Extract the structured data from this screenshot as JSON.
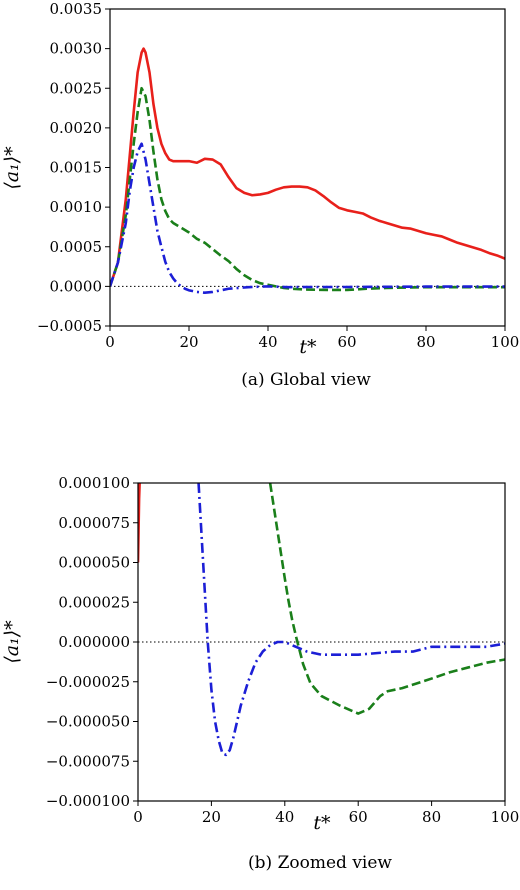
{
  "chart_data": [
    {
      "type": "line",
      "caption": "(a)  Global view",
      "xlabel": "t*",
      "ylabel": "⟨a₁⟩*",
      "xlim": [
        0,
        100
      ],
      "ylim": [
        -0.0005,
        0.0035
      ],
      "xticks": [
        0,
        20,
        40,
        60,
        80,
        100
      ],
      "yticks": [
        -0.0005,
        0.0,
        0.0005,
        0.001,
        0.0015,
        0.002,
        0.0025,
        0.003,
        0.0035
      ],
      "xtick_labels": [
        "0",
        "20",
        "40",
        "60",
        "80",
        "100"
      ],
      "ytick_labels": [
        "−0.0005",
        "0.0000",
        "0.0005",
        "0.0010",
        "0.0015",
        "0.0020",
        "0.0025",
        "0.0030",
        "0.0035"
      ],
      "reference_line": 0,
      "series": [
        {
          "color": "#e8201b",
          "style": "solid",
          "x": [
            0,
            2,
            4,
            6,
            7,
            8,
            8.5,
            9,
            10,
            11,
            12,
            13,
            14,
            15,
            16,
            18,
            20,
            22,
            24,
            26,
            28,
            30,
            32,
            34,
            36,
            38,
            40,
            42,
            44,
            46,
            48,
            50,
            52,
            54,
            56,
            58,
            60,
            62,
            64,
            66,
            68,
            70,
            72,
            74,
            76,
            78,
            80,
            82,
            84,
            86,
            88,
            90,
            92,
            94,
            96,
            98,
            100
          ],
          "y": [
            0.0,
            0.0003,
            0.0011,
            0.0022,
            0.0027,
            0.00295,
            0.003,
            0.00295,
            0.0027,
            0.0023,
            0.002,
            0.0018,
            0.00168,
            0.0016,
            0.00158,
            0.00158,
            0.00158,
            0.00156,
            0.00161,
            0.0016,
            0.00154,
            0.00138,
            0.00124,
            0.00118,
            0.00115,
            0.00116,
            0.00118,
            0.00122,
            0.00125,
            0.00126,
            0.00126,
            0.00125,
            0.00121,
            0.00114,
            0.00106,
            0.00099,
            0.00096,
            0.00094,
            0.00092,
            0.00087,
            0.00083,
            0.0008,
            0.00077,
            0.00074,
            0.00073,
            0.0007,
            0.00067,
            0.00065,
            0.00063,
            0.00059,
            0.00055,
            0.00052,
            0.00049,
            0.00046,
            0.00042,
            0.00039,
            0.00035
          ]
        },
        {
          "color": "#1a7f1a",
          "style": "dashed",
          "x": [
            0,
            2,
            4,
            6,
            7,
            8,
            9,
            10,
            11,
            12,
            13,
            14,
            15,
            16,
            18,
            20,
            22,
            24,
            26,
            28,
            30,
            32,
            34,
            36,
            38,
            40,
            42,
            44,
            46,
            48,
            50,
            55,
            60,
            65,
            70,
            75,
            80,
            85,
            90,
            95,
            100
          ],
          "y": [
            0.0,
            0.0003,
            0.0009,
            0.0018,
            0.0022,
            0.0025,
            0.0024,
            0.0021,
            0.0017,
            0.00135,
            0.0011,
            0.00095,
            0.00085,
            0.0008,
            0.00074,
            0.00068,
            0.0006,
            0.00055,
            0.00047,
            0.00039,
            0.00032,
            0.00022,
            0.00014,
            8e-05,
            4e-05,
            2e-05,
            0.0,
            -2e-05,
            -3e-05,
            -3.5e-05,
            -4e-05,
            -4.5e-05,
            -4.5e-05,
            -3e-05,
            -2e-05,
            -1.5e-05,
            -1e-05,
            -1e-05,
            -1e-05,
            -1e-05,
            -1e-05
          ]
        },
        {
          "color": "#1c1fd6",
          "style": "dashdot",
          "x": [
            0,
            2,
            4,
            5,
            6,
            7,
            8,
            9,
            10,
            11,
            12,
            13,
            14,
            15,
            16,
            17,
            18,
            19,
            20,
            22,
            24,
            26,
            28,
            30,
            35,
            40,
            45,
            50,
            60,
            70,
            80,
            90,
            100
          ],
          "y": [
            0.0,
            0.0003,
            0.0008,
            0.0012,
            0.0015,
            0.0017,
            0.0018,
            0.0016,
            0.0013,
            0.001,
            0.0007,
            0.0005,
            0.00031,
            0.00018,
            0.0001,
            4e-05,
            0.0,
            -3e-05,
            -5e-05,
            -7e-05,
            -8e-05,
            -7e-05,
            -5e-05,
            -3e-05,
            -1e-05,
            0.0,
            -1e-05,
            -8e-06,
            -8e-06,
            -5e-06,
            -3e-06,
            -2e-06,
            -2e-06
          ]
        }
      ]
    },
    {
      "type": "line",
      "caption": "(b)  Zoomed view",
      "xlabel": "t*",
      "ylabel": "⟨a₁⟩*",
      "xlim": [
        0,
        100
      ],
      "ylim": [
        -0.0001,
        0.0001
      ],
      "xticks": [
        0,
        20,
        40,
        60,
        80,
        100
      ],
      "yticks": [
        -0.0001,
        -7.5e-05,
        -5e-05,
        -2.5e-05,
        0.0,
        2.5e-05,
        5e-05,
        7.5e-05,
        0.0001
      ],
      "xtick_labels": [
        "0",
        "20",
        "40",
        "60",
        "80",
        "100"
      ],
      "ytick_labels": [
        "−0.000100",
        "−0.000075",
        "−0.000050",
        "−0.000025",
        "0.000000",
        "0.000025",
        "0.000050",
        "0.000075",
        "0.000100"
      ],
      "reference_line": 0,
      "series": [
        {
          "color": "#e8201b",
          "style": "solid",
          "x": [
            0,
            0.15,
            0.3,
            0.45,
            0.6
          ],
          "y": [
            5e-05,
            7e-05,
            9e-05,
            0.0001,
            0.00011
          ]
        },
        {
          "color": "#1a7f1a",
          "style": "dashed",
          "x": [
            36,
            37,
            38,
            39,
            40,
            41,
            42,
            43,
            44,
            45,
            47,
            50,
            55,
            60,
            63,
            66,
            68,
            72,
            76,
            80,
            85,
            90,
            95,
            100
          ],
          "y": [
            0.0001,
            8.5e-05,
            7e-05,
            5.5e-05,
            4e-05,
            2.6e-05,
            1.4e-05,
            4e-06,
            -5e-06,
            -1.4e-05,
            -2.6e-05,
            -3.4e-05,
            -4e-05,
            -4.5e-05,
            -4.2e-05,
            -3.4e-05,
            -3.1e-05,
            -2.9e-05,
            -2.6e-05,
            -2.3e-05,
            -1.9e-05,
            -1.6e-05,
            -1.3e-05,
            -1.1e-05
          ]
        },
        {
          "color": "#1c1fd6",
          "style": "dashdot",
          "x": [
            16.5,
            17,
            17.5,
            18,
            18.5,
            19,
            19.5,
            20,
            21,
            22,
            23,
            24,
            25,
            26,
            27,
            28,
            30,
            32,
            34,
            36,
            38,
            40,
            42,
            44,
            46,
            48,
            50,
            55,
            60,
            65,
            70,
            75,
            80,
            85,
            90,
            95,
            100
          ],
          "y": [
            0.0001,
            8e-05,
            6e-05,
            4e-05,
            2e-05,
            0.0,
            -1.5e-05,
            -3e-05,
            -5e-05,
            -6.2e-05,
            -7e-05,
            -7.1e-05,
            -6.8e-05,
            -6e-05,
            -5e-05,
            -4e-05,
            -2.5e-05,
            -1.3e-05,
            -6e-06,
            -2e-06,
            0.0,
            0.0,
            -2e-06,
            -4e-06,
            -6e-06,
            -7e-06,
            -8e-06,
            -8e-06,
            -8e-06,
            -7e-06,
            -6e-06,
            -6e-06,
            -3e-06,
            -3e-06,
            -3e-06,
            -3e-06,
            -1e-06
          ]
        }
      ]
    }
  ]
}
